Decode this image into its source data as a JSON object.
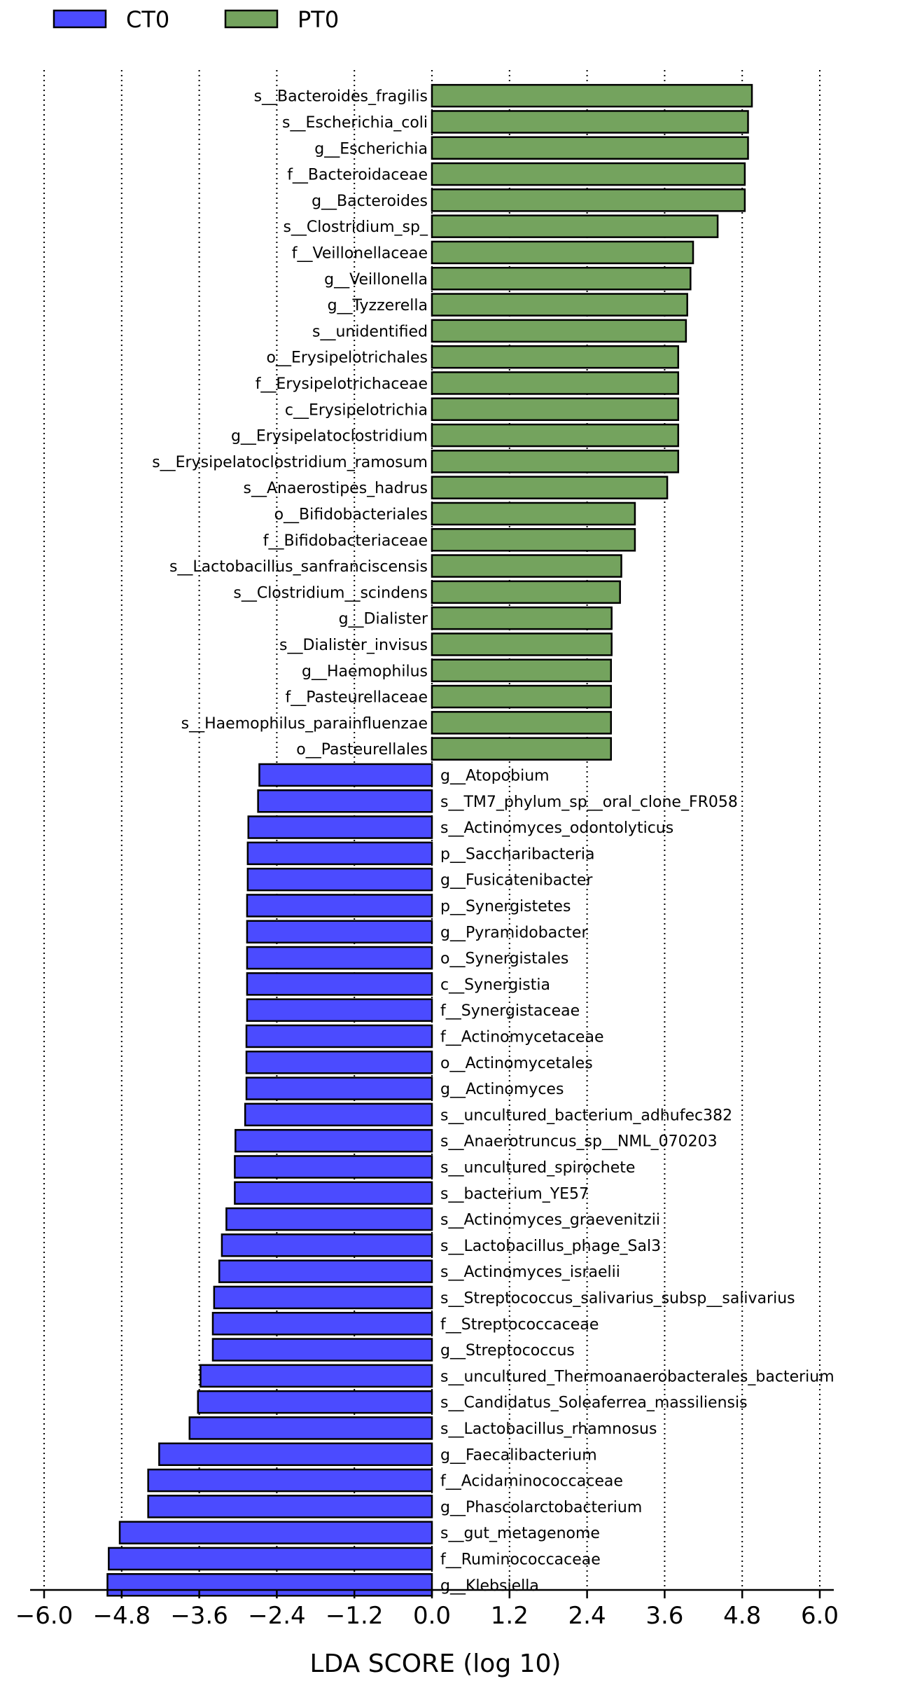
{
  "chart_data": {
    "type": "bar",
    "orientation": "horizontal",
    "xlabel": "LDA SCORE (log 10)",
    "xlim": [
      -6.0,
      6.0
    ],
    "xticks": [
      -6.0,
      -4.8,
      -3.6,
      -2.4,
      -1.2,
      0.0,
      1.2,
      2.4,
      3.6,
      4.8,
      6.0
    ],
    "tick_labels": [
      "−6.0",
      "−4.8",
      "−3.6",
      "−2.4",
      "−1.2",
      "0.0",
      "1.2",
      "2.4",
      "3.6",
      "4.8",
      "6.0"
    ],
    "grid": "vertical dotted",
    "legend": [
      {
        "name": "CT0",
        "color": "#4b4bff"
      },
      {
        "name": "PT0",
        "color": "#74a35e"
      }
    ],
    "bars": [
      {
        "label": "s__Bacteroides_fragilis",
        "value": 4.95,
        "group": "PT0"
      },
      {
        "label": "s__Escherichia_coli",
        "value": 4.89,
        "group": "PT0"
      },
      {
        "label": "g__Escherichia",
        "value": 4.89,
        "group": "PT0"
      },
      {
        "label": "f__Bacteroidaceae",
        "value": 4.84,
        "group": "PT0"
      },
      {
        "label": "g__Bacteroides",
        "value": 4.84,
        "group": "PT0"
      },
      {
        "label": "s__Clostridium_sp_",
        "value": 4.42,
        "group": "PT0"
      },
      {
        "label": "f__Veillonellaceae",
        "value": 4.04,
        "group": "PT0"
      },
      {
        "label": "g__Veillonella",
        "value": 4.0,
        "group": "PT0"
      },
      {
        "label": "g__Tyzzerella",
        "value": 3.95,
        "group": "PT0"
      },
      {
        "label": "s__unidentified",
        "value": 3.93,
        "group": "PT0"
      },
      {
        "label": "o__Erysipelotrichales",
        "value": 3.81,
        "group": "PT0"
      },
      {
        "label": "f__Erysipelotrichaceae",
        "value": 3.81,
        "group": "PT0"
      },
      {
        "label": "c__Erysipelotrichia",
        "value": 3.81,
        "group": "PT0"
      },
      {
        "label": "g__Erysipelatoclostridium",
        "value": 3.81,
        "group": "PT0"
      },
      {
        "label": "s__Erysipelatoclostridium_ramosum",
        "value": 3.81,
        "group": "PT0"
      },
      {
        "label": "s__Anaerostipes_hadrus",
        "value": 3.64,
        "group": "PT0"
      },
      {
        "label": "o__Bifidobacteriales",
        "value": 3.14,
        "group": "PT0"
      },
      {
        "label": "f__Bifidobacteriaceae",
        "value": 3.14,
        "group": "PT0"
      },
      {
        "label": "s__Lactobacillus_sanfranciscensis",
        "value": 2.93,
        "group": "PT0"
      },
      {
        "label": "s__Clostridium__scindens",
        "value": 2.91,
        "group": "PT0"
      },
      {
        "label": "g__Dialister",
        "value": 2.78,
        "group": "PT0"
      },
      {
        "label": "s__Dialister_invisus",
        "value": 2.78,
        "group": "PT0"
      },
      {
        "label": "g__Haemophilus",
        "value": 2.77,
        "group": "PT0"
      },
      {
        "label": "f__Pasteurellaceae",
        "value": 2.77,
        "group": "PT0"
      },
      {
        "label": "s__Haemophilus_parainfluenzae",
        "value": 2.77,
        "group": "PT0"
      },
      {
        "label": "o__Pasteurellales",
        "value": 2.77,
        "group": "PT0"
      },
      {
        "label": "g__Atopobium",
        "value": -2.67,
        "group": "CT0"
      },
      {
        "label": "s__TM7_phylum_sp__oral_clone_FR058",
        "value": -2.69,
        "group": "CT0"
      },
      {
        "label": "s__Actinomyces_odontolyticus",
        "value": -2.84,
        "group": "CT0"
      },
      {
        "label": "p__Saccharibacteria",
        "value": -2.85,
        "group": "CT0"
      },
      {
        "label": "g__Fusicatenibacter",
        "value": -2.85,
        "group": "CT0"
      },
      {
        "label": "p__Synergistetes",
        "value": -2.86,
        "group": "CT0"
      },
      {
        "label": "g__Pyramidobacter",
        "value": -2.86,
        "group": "CT0"
      },
      {
        "label": "o__Synergistales",
        "value": -2.86,
        "group": "CT0"
      },
      {
        "label": "c__Synergistia",
        "value": -2.86,
        "group": "CT0"
      },
      {
        "label": "f__Synergistaceae",
        "value": -2.86,
        "group": "CT0"
      },
      {
        "label": "f__Actinomycetaceae",
        "value": -2.87,
        "group": "CT0"
      },
      {
        "label": "o__Actinomycetales",
        "value": -2.87,
        "group": "CT0"
      },
      {
        "label": "g__Actinomyces",
        "value": -2.87,
        "group": "CT0"
      },
      {
        "label": "s__uncultured_bacterium_adhufec382",
        "value": -2.89,
        "group": "CT0"
      },
      {
        "label": "s__Anaerotruncus_sp__NML_070203",
        "value": -3.04,
        "group": "CT0"
      },
      {
        "label": "s__uncultured_spirochete",
        "value": -3.05,
        "group": "CT0"
      },
      {
        "label": "s__bacterium_YE57",
        "value": -3.05,
        "group": "CT0"
      },
      {
        "label": "s__Actinomyces_graevenitzii",
        "value": -3.18,
        "group": "CT0"
      },
      {
        "label": "s__Lactobacillus_phage_Sal3",
        "value": -3.25,
        "group": "CT0"
      },
      {
        "label": "s__Actinomyces_israelii",
        "value": -3.29,
        "group": "CT0"
      },
      {
        "label": "s__Streptococcus_salivarius_subsp__salivarius",
        "value": -3.37,
        "group": "CT0"
      },
      {
        "label": "f__Streptococcaceae",
        "value": -3.39,
        "group": "CT0"
      },
      {
        "label": "g__Streptococcus",
        "value": -3.39,
        "group": "CT0"
      },
      {
        "label": "s__uncultured_Thermoanaerobacterales_bacterium",
        "value": -3.58,
        "group": "CT0"
      },
      {
        "label": "s__Candidatus_Soleaferrea_massiliensis",
        "value": -3.62,
        "group": "CT0"
      },
      {
        "label": "s__Lactobacillus_rhamnosus",
        "value": -3.75,
        "group": "CT0"
      },
      {
        "label": "g__Faecalibacterium",
        "value": -4.22,
        "group": "CT0"
      },
      {
        "label": "f__Acidaminococcaceae",
        "value": -4.39,
        "group": "CT0"
      },
      {
        "label": "g__Phascolarctobacterium",
        "value": -4.39,
        "group": "CT0"
      },
      {
        "label": "s__gut_metagenome",
        "value": -4.83,
        "group": "CT0"
      },
      {
        "label": "f__Ruminococcaceae",
        "value": -5.0,
        "group": "CT0"
      },
      {
        "label": "g__Klebsiella",
        "value": -5.02,
        "group": "CT0"
      }
    ]
  }
}
